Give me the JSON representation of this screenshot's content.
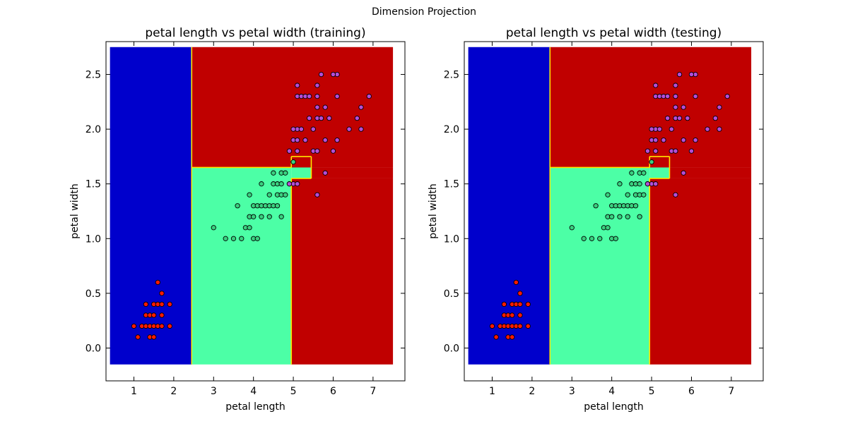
{
  "figure": {
    "suptitle": "Dimension Projection"
  },
  "colors": {
    "region_setosa": "#0000cc",
    "region_versicolor": "#4cffa6",
    "region_virginica": "#c00000",
    "boundary": "#ffe600",
    "point_setosa": "#ff1a00",
    "point_versicolor": "#3ad07f",
    "point_virginica": "#b44dd6"
  },
  "chart_data": [
    {
      "type": "scatter",
      "title": "petal length vs  petal width (training)",
      "xlabel": "petal length",
      "ylabel": "petal width",
      "xlim": [
        0.3,
        7.8
      ],
      "ylim": [
        -0.3,
        2.8
      ],
      "xticks": [
        "1",
        "2",
        "3",
        "4",
        "5",
        "6",
        "7"
      ],
      "yticks": [
        "0.0",
        "0.5",
        "1.0",
        "1.5",
        "2.0",
        "2.5"
      ],
      "background": "decision regions (setosa / versicolor / virginica)",
      "regions": [
        {
          "class": "setosa",
          "rects": [
            [
              0.4,
              2.45,
              -0.15,
              2.75
            ]
          ]
        },
        {
          "class": "versicolor",
          "rects": [
            [
              2.45,
              4.95,
              -0.15,
              1.65
            ],
            [
              4.95,
              5.45,
              1.55,
              1.75
            ]
          ]
        },
        {
          "class": "virginica",
          "rects": [
            [
              2.45,
              7.5,
              1.65,
              2.75
            ],
            [
              4.95,
              7.5,
              -0.15,
              1.55
            ],
            [
              5.45,
              7.5,
              1.55,
              1.65
            ]
          ]
        }
      ],
      "series": [
        {
          "class": "setosa",
          "points": [
            [
              1.1,
              0.1
            ],
            [
              1.4,
              0.1
            ],
            [
              1.5,
              0.1
            ],
            [
              1.0,
              0.2
            ],
            [
              1.2,
              0.2
            ],
            [
              1.3,
              0.2
            ],
            [
              1.4,
              0.2
            ],
            [
              1.5,
              0.2
            ],
            [
              1.6,
              0.2
            ],
            [
              1.7,
              0.2
            ],
            [
              1.9,
              0.2
            ],
            [
              1.3,
              0.3
            ],
            [
              1.4,
              0.3
            ],
            [
              1.5,
              0.3
            ],
            [
              1.7,
              0.3
            ],
            [
              1.3,
              0.4
            ],
            [
              1.5,
              0.4
            ],
            [
              1.6,
              0.4
            ],
            [
              1.7,
              0.4
            ],
            [
              1.9,
              0.4
            ],
            [
              1.7,
              0.5
            ],
            [
              1.6,
              0.6
            ]
          ]
        },
        {
          "class": "versicolor",
          "points": [
            [
              3.3,
              1.0
            ],
            [
              3.5,
              1.0
            ],
            [
              3.7,
              1.0
            ],
            [
              4.0,
              1.0
            ],
            [
              4.1,
              1.0
            ],
            [
              3.0,
              1.1
            ],
            [
              3.8,
              1.1
            ],
            [
              3.9,
              1.1
            ],
            [
              3.9,
              1.2
            ],
            [
              4.0,
              1.2
            ],
            [
              4.2,
              1.2
            ],
            [
              4.4,
              1.2
            ],
            [
              4.7,
              1.2
            ],
            [
              3.6,
              1.3
            ],
            [
              4.0,
              1.3
            ],
            [
              4.1,
              1.3
            ],
            [
              4.2,
              1.3
            ],
            [
              4.3,
              1.3
            ],
            [
              4.4,
              1.3
            ],
            [
              4.5,
              1.3
            ],
            [
              4.6,
              1.3
            ],
            [
              3.9,
              1.4
            ],
            [
              4.4,
              1.4
            ],
            [
              4.6,
              1.4
            ],
            [
              4.7,
              1.4
            ],
            [
              4.8,
              1.4
            ],
            [
              4.2,
              1.5
            ],
            [
              4.5,
              1.5
            ],
            [
              4.6,
              1.5
            ],
            [
              4.7,
              1.5
            ],
            [
              4.9,
              1.5
            ],
            [
              4.5,
              1.6
            ],
            [
              4.7,
              1.6
            ],
            [
              4.8,
              1.6
            ],
            [
              5.0,
              1.7
            ]
          ]
        },
        {
          "class": "virginica",
          "points": [
            [
              5.6,
              1.4
            ],
            [
              5.0,
              1.5
            ],
            [
              5.1,
              1.5
            ],
            [
              4.9,
              1.5
            ],
            [
              5.8,
              1.6
            ],
            [
              4.9,
              1.8
            ],
            [
              5.1,
              1.8
            ],
            [
              5.5,
              1.8
            ],
            [
              5.6,
              1.8
            ],
            [
              6.0,
              1.8
            ],
            [
              5.0,
              1.9
            ],
            [
              5.1,
              1.9
            ],
            [
              5.3,
              1.9
            ],
            [
              5.8,
              1.9
            ],
            [
              6.1,
              1.9
            ],
            [
              5.1,
              2.0
            ],
            [
              5.2,
              2.0
            ],
            [
              5.0,
              2.0
            ],
            [
              5.5,
              2.0
            ],
            [
              6.4,
              2.0
            ],
            [
              6.7,
              2.0
            ],
            [
              5.4,
              2.1
            ],
            [
              5.6,
              2.1
            ],
            [
              5.7,
              2.1
            ],
            [
              5.9,
              2.1
            ],
            [
              6.6,
              2.1
            ],
            [
              5.6,
              2.2
            ],
            [
              5.8,
              2.2
            ],
            [
              6.7,
              2.2
            ],
            [
              5.1,
              2.3
            ],
            [
              5.2,
              2.3
            ],
            [
              5.3,
              2.3
            ],
            [
              5.4,
              2.3
            ],
            [
              5.6,
              2.3
            ],
            [
              6.1,
              2.3
            ],
            [
              6.9,
              2.3
            ],
            [
              5.1,
              2.4
            ],
            [
              5.6,
              2.4
            ],
            [
              6.1,
              2.5
            ],
            [
              6.0,
              2.5
            ],
            [
              5.7,
              2.5
            ]
          ]
        }
      ]
    },
    {
      "type": "scatter",
      "title": "petal length vs  petal width (testing)",
      "xlabel": "petal length",
      "ylabel": "petal width",
      "xlim": [
        0.3,
        7.8
      ],
      "ylim": [
        -0.3,
        2.8
      ],
      "xticks": [
        "1",
        "2",
        "3",
        "4",
        "5",
        "6",
        "7"
      ],
      "yticks": [
        "0.0",
        "0.5",
        "1.0",
        "1.5",
        "2.0",
        "2.5"
      ],
      "background": "decision regions (setosa / versicolor / virginica)",
      "regions": [
        {
          "class": "setosa",
          "rects": [
            [
              0.4,
              2.45,
              -0.15,
              2.75
            ]
          ]
        },
        {
          "class": "versicolor",
          "rects": [
            [
              2.45,
              4.95,
              -0.15,
              1.65
            ],
            [
              4.95,
              5.45,
              1.55,
              1.75
            ]
          ]
        },
        {
          "class": "virginica",
          "rects": [
            [
              2.45,
              7.5,
              1.65,
              2.75
            ],
            [
              4.95,
              7.5,
              -0.15,
              1.55
            ],
            [
              5.45,
              7.5,
              1.55,
              1.65
            ]
          ]
        }
      ],
      "series": [
        {
          "class": "setosa",
          "points": [
            [
              1.1,
              0.1
            ],
            [
              1.4,
              0.1
            ],
            [
              1.5,
              0.1
            ],
            [
              1.0,
              0.2
            ],
            [
              1.2,
              0.2
            ],
            [
              1.3,
              0.2
            ],
            [
              1.4,
              0.2
            ],
            [
              1.5,
              0.2
            ],
            [
              1.6,
              0.2
            ],
            [
              1.7,
              0.2
            ],
            [
              1.9,
              0.2
            ],
            [
              1.3,
              0.3
            ],
            [
              1.4,
              0.3
            ],
            [
              1.5,
              0.3
            ],
            [
              1.7,
              0.3
            ],
            [
              1.3,
              0.4
            ],
            [
              1.5,
              0.4
            ],
            [
              1.6,
              0.4
            ],
            [
              1.7,
              0.4
            ],
            [
              1.9,
              0.4
            ],
            [
              1.7,
              0.5
            ],
            [
              1.6,
              0.6
            ]
          ]
        },
        {
          "class": "versicolor",
          "points": [
            [
              3.3,
              1.0
            ],
            [
              3.5,
              1.0
            ],
            [
              3.7,
              1.0
            ],
            [
              4.0,
              1.0
            ],
            [
              4.1,
              1.0
            ],
            [
              3.0,
              1.1
            ],
            [
              3.8,
              1.1
            ],
            [
              3.9,
              1.1
            ],
            [
              3.9,
              1.2
            ],
            [
              4.0,
              1.2
            ],
            [
              4.2,
              1.2
            ],
            [
              4.4,
              1.2
            ],
            [
              4.7,
              1.2
            ],
            [
              3.6,
              1.3
            ],
            [
              4.0,
              1.3
            ],
            [
              4.1,
              1.3
            ],
            [
              4.2,
              1.3
            ],
            [
              4.3,
              1.3
            ],
            [
              4.4,
              1.3
            ],
            [
              4.5,
              1.3
            ],
            [
              4.6,
              1.3
            ],
            [
              3.9,
              1.4
            ],
            [
              4.4,
              1.4
            ],
            [
              4.6,
              1.4
            ],
            [
              4.7,
              1.4
            ],
            [
              4.8,
              1.4
            ],
            [
              4.2,
              1.5
            ],
            [
              4.5,
              1.5
            ],
            [
              4.6,
              1.5
            ],
            [
              4.7,
              1.5
            ],
            [
              4.9,
              1.5
            ],
            [
              4.5,
              1.6
            ],
            [
              4.7,
              1.6
            ],
            [
              4.8,
              1.6
            ],
            [
              5.0,
              1.7
            ]
          ]
        },
        {
          "class": "virginica",
          "points": [
            [
              5.6,
              1.4
            ],
            [
              5.0,
              1.5
            ],
            [
              5.1,
              1.5
            ],
            [
              4.9,
              1.5
            ],
            [
              5.8,
              1.6
            ],
            [
              4.9,
              1.8
            ],
            [
              5.1,
              1.8
            ],
            [
              5.5,
              1.8
            ],
            [
              5.6,
              1.8
            ],
            [
              6.0,
              1.8
            ],
            [
              5.0,
              1.9
            ],
            [
              5.1,
              1.9
            ],
            [
              5.3,
              1.9
            ],
            [
              5.8,
              1.9
            ],
            [
              6.1,
              1.9
            ],
            [
              5.1,
              2.0
            ],
            [
              5.2,
              2.0
            ],
            [
              5.0,
              2.0
            ],
            [
              5.5,
              2.0
            ],
            [
              6.4,
              2.0
            ],
            [
              6.7,
              2.0
            ],
            [
              5.4,
              2.1
            ],
            [
              5.6,
              2.1
            ],
            [
              5.7,
              2.1
            ],
            [
              5.9,
              2.1
            ],
            [
              6.6,
              2.1
            ],
            [
              5.6,
              2.2
            ],
            [
              5.8,
              2.2
            ],
            [
              6.7,
              2.2
            ],
            [
              5.1,
              2.3
            ],
            [
              5.2,
              2.3
            ],
            [
              5.3,
              2.3
            ],
            [
              5.4,
              2.3
            ],
            [
              5.6,
              2.3
            ],
            [
              6.1,
              2.3
            ],
            [
              6.9,
              2.3
            ],
            [
              5.1,
              2.4
            ],
            [
              5.6,
              2.4
            ],
            [
              6.1,
              2.5
            ],
            [
              6.0,
              2.5
            ],
            [
              5.7,
              2.5
            ]
          ]
        }
      ]
    }
  ]
}
